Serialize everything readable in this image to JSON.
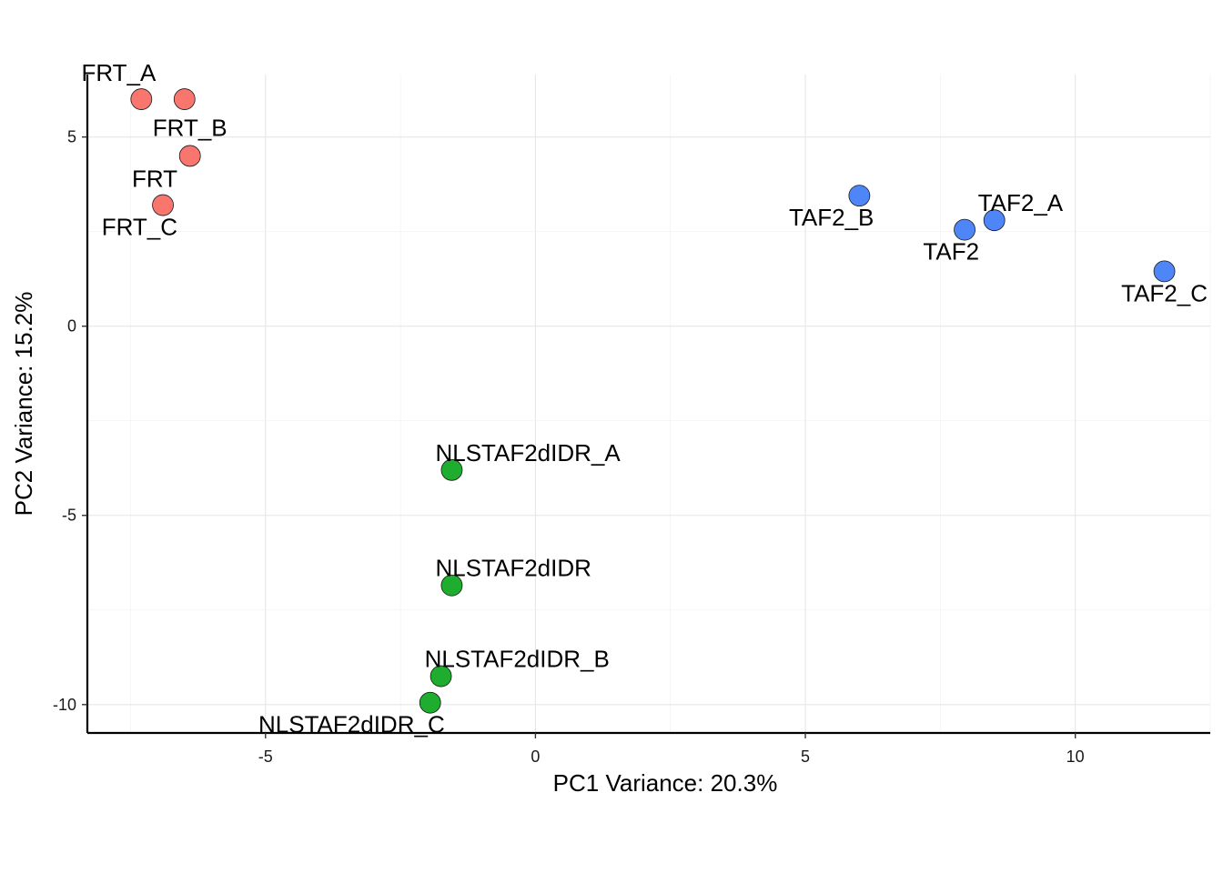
{
  "chart_data": {
    "type": "scatter",
    "xlabel": "PC1 Variance: 20.3%",
    "ylabel": "PC2 Variance: 15.2%",
    "xlim": [
      -8.3,
      12.5
    ],
    "ylim": [
      -10.75,
      6.65
    ],
    "x_ticks": [
      -5,
      0,
      5,
      10
    ],
    "y_ticks": [
      5,
      0,
      -5,
      -10
    ],
    "x_tick_labels": [
      "-5",
      "0",
      "5",
      "10"
    ],
    "y_tick_labels": [
      "5",
      "0",
      "-5",
      "-10"
    ],
    "grid": true,
    "legend": "none",
    "groups": {
      "FRT": "#F8766D",
      "NLSTAF2dIDR": "#1EAD2F",
      "TAF2": "#4F86F7"
    },
    "points": [
      {
        "label": "FRT_A",
        "x": -7.3,
        "y": 6.0,
        "group": "FRT",
        "label_pos": "nw"
      },
      {
        "label": "",
        "x": -6.5,
        "y": 6.0,
        "group": "FRT"
      },
      {
        "label": "FRT_B",
        "x": -6.4,
        "y": 4.5,
        "group": "FRT",
        "label_pos": "n"
      },
      {
        "label": "FRT",
        "x": -6.9,
        "y": 3.2,
        "group": "FRT",
        "label_pos": "nw"
      },
      {
        "label": "FRT_C",
        "x": -6.9,
        "y": 3.2,
        "group": "FRT",
        "label_pos": "sw"
      },
      {
        "label": "TAF2_B",
        "x": 6.0,
        "y": 3.45,
        "group": "TAF2",
        "label_pos": "sw"
      },
      {
        "label": "TAF2_A",
        "x": 8.5,
        "y": 2.8,
        "group": "TAF2",
        "label_pos": "ne"
      },
      {
        "label": "TAF2",
        "x": 7.95,
        "y": 2.55,
        "group": "TAF2",
        "label_pos": "sw"
      },
      {
        "label": "TAF2_C",
        "x": 11.65,
        "y": 1.45,
        "group": "TAF2",
        "label_pos": "s"
      },
      {
        "label": "NLSTAF2dIDR_A",
        "x": -1.55,
        "y": -3.8,
        "group": "NLSTAF2dIDR",
        "label_pos": "ne"
      },
      {
        "label": "NLSTAF2dIDR",
        "x": -1.55,
        "y": -6.85,
        "group": "NLSTAF2dIDR",
        "label_pos": "ne"
      },
      {
        "label": "NLSTAF2dIDR_B",
        "x": -1.75,
        "y": -9.25,
        "group": "NLSTAF2dIDR",
        "label_pos": "ne"
      },
      {
        "label": "NLSTAF2dIDR_C",
        "x": -1.95,
        "y": -9.95,
        "group": "NLSTAF2dIDR",
        "label_pos": "sw"
      }
    ]
  }
}
